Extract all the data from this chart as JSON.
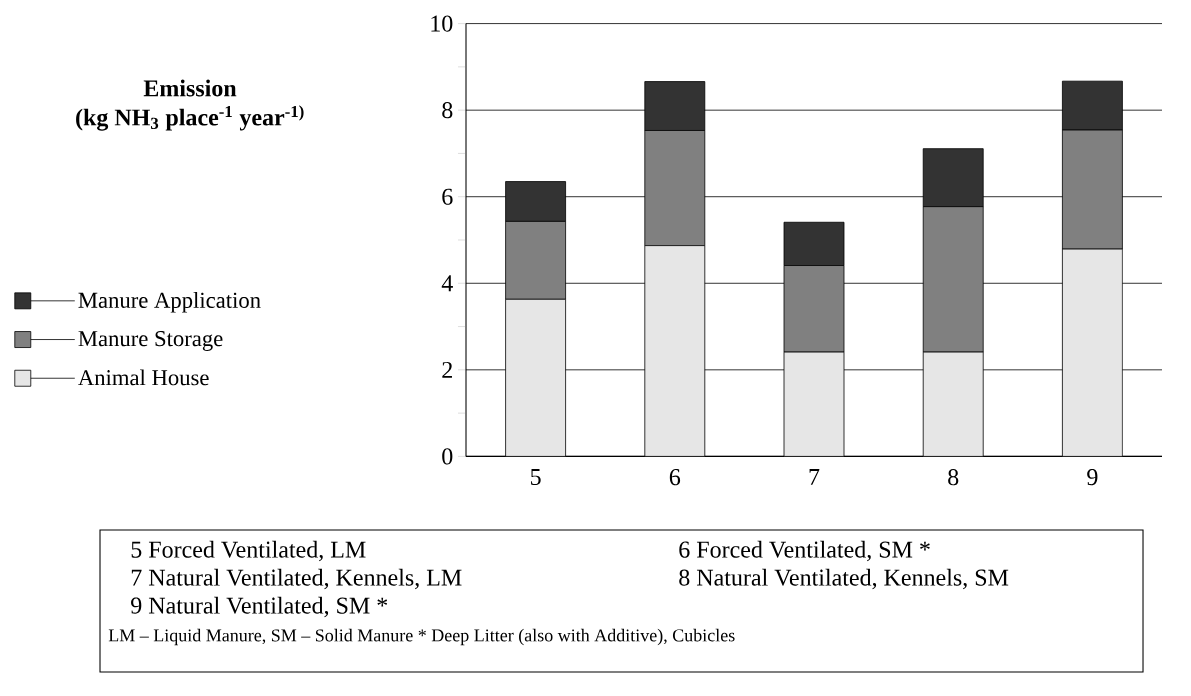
{
  "chart_data": {
    "type": "bar",
    "stacked": true,
    "title": "Emission",
    "subtitle": "(kg NH$_{3}$ place$^{-1}$ year$^{-1)}$",
    "categories": [
      "5",
      "6",
      "7",
      "8",
      "9"
    ],
    "series": [
      {
        "name": "Animal House",
        "color": "#e6e6e6",
        "values": [
          3.63,
          4.87,
          2.41,
          2.41,
          4.79
        ]
      },
      {
        "name": "Manure Storage",
        "color": "#808080",
        "values": [
          1.8,
          2.66,
          2.0,
          3.36,
          2.75
        ]
      },
      {
        "name": "Manure Application",
        "color": "#333333",
        "values": [
          0.92,
          1.13,
          1.0,
          1.34,
          1.13
        ]
      }
    ],
    "ylim": [
      0,
      10
    ],
    "yticks": [
      0,
      {
        "value": 1,
        "label": null
      },
      2,
      {
        "value": 3,
        "label": null
      },
      4,
      {
        "value": 5,
        "label": null
      },
      6,
      {
        "value": 7,
        "label": null
      },
      8,
      {
        "value": 9,
        "label": null
      },
      10
    ],
    "grid": "y",
    "legend": "left",
    "annotations": [
      "5  Forced Ventilated, LM",
      "6  Forced Ventilated, SM *",
      "7  Natural Ventilated, Kennels, LM",
      "8  Natural Ventilated, Kennels, SM",
      "9  Natural Ventilated, SM *",
      "LM – Liquid Manure,   SM – Solid Manure   * Deep Litter (also with Additive), Cubicles"
    ]
  }
}
